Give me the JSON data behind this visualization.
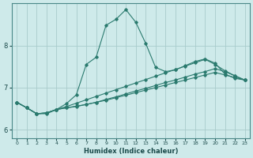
{
  "title": "",
  "xlabel": "Humidex (Indice chaleur)",
  "bg_color": "#ceeaea",
  "grid_color": "#a8cccc",
  "line_color": "#2a7a6e",
  "xlim": [
    -0.5,
    23.5
  ],
  "ylim": [
    5.8,
    9.0
  ],
  "yticks": [
    6,
    7,
    8
  ],
  "xticks": [
    0,
    1,
    2,
    3,
    4,
    5,
    6,
    7,
    8,
    9,
    10,
    11,
    12,
    13,
    14,
    15,
    16,
    17,
    18,
    19,
    20,
    21,
    22,
    23
  ],
  "series": [
    [
      6.65,
      6.52,
      6.38,
      6.38,
      6.48,
      6.62,
      6.83,
      7.55,
      7.72,
      8.48,
      8.62,
      8.85,
      8.55,
      8.05,
      7.48,
      7.38,
      7.42,
      7.52,
      7.62,
      7.68,
      7.58,
      7.32,
      7.22,
      7.18
    ],
    [
      6.65,
      6.52,
      6.38,
      6.4,
      6.48,
      6.52,
      6.55,
      6.6,
      6.65,
      6.72,
      6.78,
      6.85,
      6.92,
      6.98,
      7.05,
      7.12,
      7.18,
      7.25,
      7.32,
      7.38,
      7.45,
      7.38,
      7.28,
      7.18
    ],
    [
      6.65,
      6.52,
      6.38,
      6.4,
      6.48,
      6.52,
      6.56,
      6.6,
      6.65,
      6.7,
      6.76,
      6.82,
      6.88,
      6.94,
      7.0,
      7.06,
      7.12,
      7.18,
      7.24,
      7.3,
      7.36,
      7.3,
      7.24,
      7.18
    ],
    [
      6.65,
      6.52,
      6.38,
      6.4,
      6.48,
      6.55,
      6.63,
      6.71,
      6.79,
      6.87,
      6.95,
      7.03,
      7.11,
      7.19,
      7.27,
      7.35,
      7.43,
      7.51,
      7.59,
      7.67,
      7.55,
      7.4,
      7.28,
      7.18
    ]
  ]
}
